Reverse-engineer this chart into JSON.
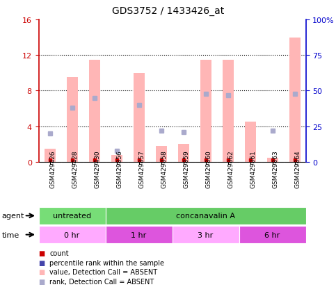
{
  "title": "GDS3752 / 1433426_at",
  "samples": [
    "GSM429426",
    "GSM429428",
    "GSM429430",
    "GSM429856",
    "GSM429857",
    "GSM429858",
    "GSM429859",
    "GSM429860",
    "GSM429862",
    "GSM429861",
    "GSM429863",
    "GSM429864"
  ],
  "bar_values": [
    1.5,
    9.5,
    11.5,
    0.8,
    10.0,
    1.8,
    2.0,
    11.5,
    11.5,
    4.5,
    0.5,
    14.0
  ],
  "rank_values": [
    20.0,
    38.0,
    45.0,
    8.0,
    40.0,
    22.0,
    21.0,
    48.0,
    47.0,
    null,
    22.0,
    48.0
  ],
  "bar_color": "#FFB6B6",
  "rank_color": "#AAAACC",
  "count_color": "#CC0000",
  "ylim_left": [
    0,
    16
  ],
  "ylim_right": [
    0,
    100
  ],
  "yticks_left": [
    0,
    4,
    8,
    12,
    16
  ],
  "yticks_right": [
    0,
    25,
    50,
    75,
    100
  ],
  "ytick_labels_right": [
    "0",
    "25",
    "50",
    "75",
    "100%"
  ],
  "background_color": "#FFFFFF",
  "left_axis_color": "#CC0000",
  "right_axis_color": "#0000CC",
  "agent_row": [
    {
      "label": "untreated",
      "start": 0,
      "end": 3,
      "color": "#77DD77"
    },
    {
      "label": "concanavalin A",
      "start": 3,
      "end": 12,
      "color": "#66CC66"
    }
  ],
  "time_row": [
    {
      "label": "0 hr",
      "start": 0,
      "end": 3,
      "color": "#FFAAFF"
    },
    {
      "label": "1 hr",
      "start": 3,
      "end": 6,
      "color": "#DD55DD"
    },
    {
      "label": "3 hr",
      "start": 6,
      "end": 9,
      "color": "#FFAAFF"
    },
    {
      "label": "6 hr",
      "start": 9,
      "end": 12,
      "color": "#DD55DD"
    }
  ],
  "legend_colors": [
    "#CC0000",
    "#4444AA",
    "#FFB6B6",
    "#AAAACC"
  ],
  "legend_labels": [
    "count",
    "percentile rank within the sample",
    "value, Detection Call = ABSENT",
    "rank, Detection Call = ABSENT"
  ]
}
